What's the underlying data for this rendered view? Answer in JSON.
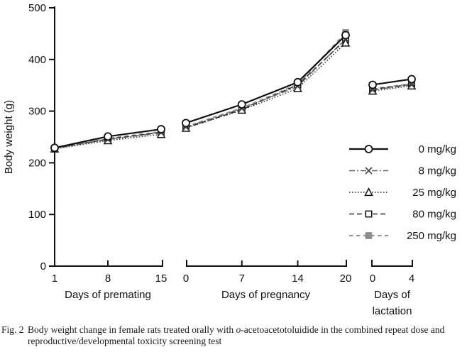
{
  "figure": {
    "fig_label": "Fig. 2",
    "caption_part1": "Body weight change in female rats treated orally with ",
    "caption_italic": "o",
    "caption_part2": "-acetoacetotoluidide in the combined repeat dose and reproductive/developmental toxicity screening test"
  },
  "chart_data": {
    "type": "line",
    "title": "",
    "ylabel": "Body weight (g)",
    "ylim": [
      0,
      500
    ],
    "yticks": [
      0,
      100,
      200,
      300,
      400,
      500
    ],
    "grid": false,
    "legend_position": "right-center",
    "axis_color": "#111111",
    "segments": [
      {
        "label_lines": [
          "Days of premating"
        ],
        "x": [
          1,
          8,
          15
        ]
      },
      {
        "label_lines": [
          "Days of pregnancy"
        ],
        "x": [
          0,
          7,
          14,
          20
        ]
      },
      {
        "label_lines": [
          "Days of",
          "lactation"
        ],
        "x": [
          0,
          4
        ]
      }
    ],
    "series": [
      {
        "name": "0 mg/kg",
        "marker": "open-circle",
        "line": "solid",
        "color": "#111111",
        "values": [
          [
            229,
            251,
            265
          ],
          [
            277,
            313,
            356,
            447
          ],
          [
            351,
            362
          ]
        ]
      },
      {
        "name": "8 mg/kg",
        "marker": "x",
        "line": "dash-dot",
        "color": "#606060",
        "values": [
          [
            228,
            245,
            258
          ],
          [
            269,
            305,
            348,
            440
          ],
          [
            341,
            351
          ]
        ]
      },
      {
        "name": "25 mg/kg",
        "marker": "open-triangle",
        "line": "dotted",
        "color": "#2a2a2a",
        "values": [
          [
            227,
            243,
            255
          ],
          [
            267,
            302,
            344,
            432
          ],
          [
            339,
            349
          ]
        ]
      },
      {
        "name": "80 mg/kg",
        "marker": "open-square",
        "line": "dashed",
        "color": "#2a2a2a",
        "values": [
          [
            228,
            246,
            259
          ],
          [
            268,
            303,
            351,
            438
          ],
          [
            342,
            352
          ]
        ]
      },
      {
        "name": "250 mg/kg",
        "marker": "filled-square",
        "line": "gray-dashed",
        "color": "#979797",
        "values": [
          [
            228,
            247,
            260
          ],
          [
            270,
            306,
            352,
            452
          ],
          [
            343,
            353
          ]
        ]
      }
    ]
  }
}
